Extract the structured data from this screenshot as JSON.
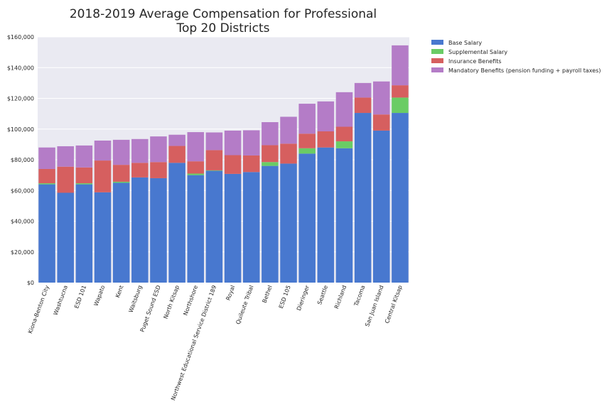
{
  "chart_data": {
    "type": "bar",
    "stacked": true,
    "title": [
      "2018-2019 Average Compensation for Professional",
      "Top 20 Districts"
    ],
    "xlabel": "",
    "ylabel": "",
    "ylim": [
      0,
      160000
    ],
    "yticks": [
      "$0",
      "$20,000",
      "$40,000",
      "$60,000",
      "$80,000",
      "$100,000",
      "$120,000",
      "$140,000",
      "$160,000"
    ],
    "grid": true,
    "legend_position": "outside-top-right",
    "categories": [
      "Kiona-Benton City",
      "Washtucna",
      "ESD 101",
      "Wapato",
      "Kent",
      "Waitsburg",
      "Puget Sound ESD",
      "North Kitsap",
      "Northshore",
      "Northwest Educational Service District 189",
      "Royal",
      "Quileute Tribal",
      "Bethel",
      "ESD 105",
      "Dieringer",
      "Seattle",
      "Richland",
      "Tacoma",
      "San Juan Island",
      "Central Kitsap"
    ],
    "series": [
      {
        "name": "Base Salary",
        "color": "#4878cf",
        "values": [
          64000,
          58500,
          64000,
          58800,
          65000,
          68500,
          68000,
          78000,
          70000,
          72800,
          70800,
          72000,
          76000,
          77500,
          84000,
          88000,
          87500,
          110500,
          99000,
          110500
        ]
      },
      {
        "name": "Supplemental Salary",
        "color": "#6acc65",
        "values": [
          700,
          0,
          700,
          0,
          700,
          0,
          0,
          0,
          1000,
          300,
          0,
          0,
          2500,
          0,
          3500,
          0,
          4500,
          0,
          0,
          10000
        ]
      },
      {
        "name": "Insurance Benefits",
        "color": "#d65f5f",
        "values": [
          9300,
          17000,
          10300,
          20700,
          11000,
          9500,
          10500,
          11000,
          8000,
          13200,
          12200,
          10800,
          11000,
          13000,
          9500,
          10500,
          9500,
          10000,
          10500,
          8000
        ]
      },
      {
        "name": "Mandatory Benefits (pension funding + payroll taxes)",
        "color": "#b47cc7",
        "values": [
          14000,
          13300,
          14300,
          13000,
          16300,
          15500,
          16700,
          7300,
          19000,
          11500,
          16000,
          16400,
          15000,
          17500,
          19500,
          19500,
          22500,
          9500,
          21500,
          26000
        ]
      }
    ]
  }
}
